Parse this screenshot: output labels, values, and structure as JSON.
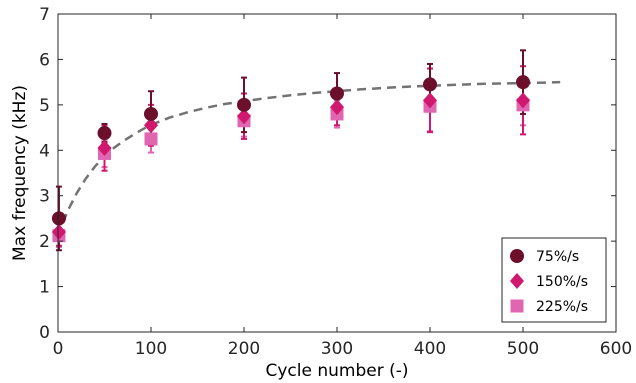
{
  "chart_data": {
    "type": "scatter",
    "xlabel": "Cycle number (-)",
    "ylabel": "Max frequency (kHz)",
    "xlim": [
      0,
      600
    ],
    "ylim": [
      0,
      7
    ],
    "xticks": [
      0,
      100,
      200,
      300,
      400,
      500,
      600
    ],
    "yticks": [
      0,
      1,
      2,
      3,
      4,
      5,
      6,
      7
    ],
    "grid": false,
    "legend_position": "bottom-right",
    "x": [
      1,
      50,
      100,
      200,
      300,
      400,
      500
    ],
    "series": [
      {
        "name": "75%/s",
        "marker": "circle",
        "color": "#6b0f2b",
        "values": [
          2.5,
          4.38,
          4.8,
          5.0,
          5.25,
          5.45,
          5.5
        ],
        "errors": [
          0.7,
          0.2,
          0.5,
          0.6,
          0.45,
          0.45,
          0.7
        ]
      },
      {
        "name": "150%/s",
        "marker": "diamond",
        "color": "#d0186e",
        "values": [
          2.2,
          4.05,
          4.55,
          4.75,
          4.95,
          5.1,
          5.1
        ],
        "errors": [
          0.3,
          0.5,
          0.45,
          0.5,
          0.4,
          0.7,
          0.75
        ]
      },
      {
        "name": "225%/s",
        "marker": "square",
        "color": "#e166b2",
        "values": [
          2.12,
          3.93,
          4.25,
          4.65,
          4.8,
          4.97,
          5.0
        ],
        "errors": [
          0.25,
          0.3,
          0.3,
          0.35,
          0.3,
          0.55,
          0.45
        ]
      }
    ],
    "fit_curve": {
      "style": "dashed",
      "color": "#737373",
      "x": [
        0,
        10,
        20,
        30,
        40,
        50,
        60,
        70,
        80,
        90,
        100,
        120,
        140,
        160,
        180,
        200,
        225,
        250,
        275,
        300,
        325,
        350,
        375,
        400,
        425,
        450,
        475,
        500,
        525,
        540
      ],
      "y": [
        2.1,
        2.65,
        3.05,
        3.38,
        3.65,
        3.87,
        4.05,
        4.2,
        4.33,
        4.45,
        4.56,
        4.72,
        4.84,
        4.94,
        5.02,
        5.08,
        5.15,
        5.21,
        5.26,
        5.3,
        5.34,
        5.37,
        5.4,
        5.42,
        5.44,
        5.46,
        5.47,
        5.48,
        5.49,
        5.5
      ]
    }
  }
}
